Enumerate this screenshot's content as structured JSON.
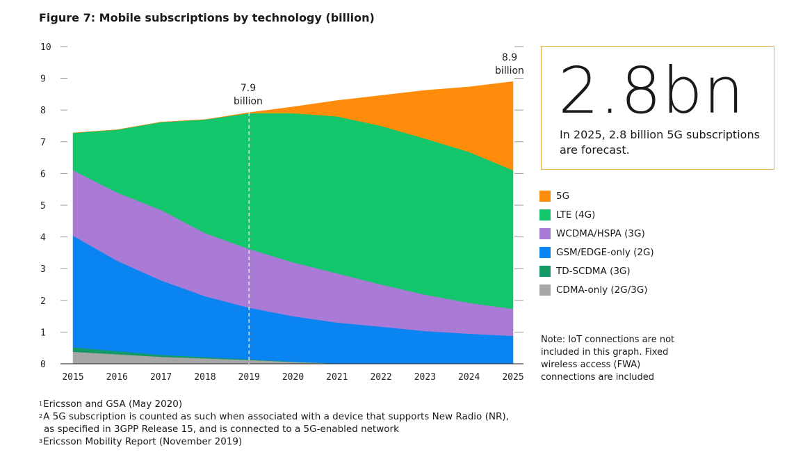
{
  "title": "Figure 7: Mobile subscriptions by technology (billion)",
  "callouts": {
    "y2019": {
      "value": "7.9",
      "unit": "billion"
    },
    "y2025": {
      "value": "8.9",
      "unit": "billion"
    }
  },
  "highlight": {
    "big": "2.8bn",
    "desc": "In 2025, 2.8 billion 5G subscriptions are forecast."
  },
  "legend": [
    {
      "label": "5G",
      "color": "#ff8c0a"
    },
    {
      "label": "LTE (4G)",
      "color": "#13c56b"
    },
    {
      "label": "WCDMA/HSPA (3G)",
      "color": "#a97bd6"
    },
    {
      "label": "GSM/EDGE-only (2G)",
      "color": "#0a84f0"
    },
    {
      "label": "TD-SCDMA (3G)",
      "color": "#139966"
    },
    {
      "label": "CDMA-only (2G/3G)",
      "color": "#a6a6a6"
    }
  ],
  "note": "Note: IoT connections are not included in this graph. Fixed wireless access (FWA) connections are included",
  "footnotes": [
    {
      "num": "1",
      "text": "Ericsson and GSA (May 2020)"
    },
    {
      "num": "2",
      "text": "A 5G subscription is counted as such when associated with a device that supports New Radio (NR),"
    },
    {
      "num": "",
      "text": "as specified in 3GPP Release 15, and is connected to a 5G-enabled network"
    },
    {
      "num": "3",
      "text": "Ericsson Mobility Report (November 2019)"
    }
  ],
  "chart_data": {
    "type": "area",
    "stacked": true,
    "title": "Figure 7: Mobile subscriptions by technology (billion)",
    "xlabel": "",
    "ylabel": "",
    "x": [
      2015,
      2016,
      2017,
      2018,
      2019,
      2020,
      2021,
      2022,
      2023,
      2024,
      2025
    ],
    "ylim": [
      0,
      10
    ],
    "yticks": [
      0,
      1,
      2,
      3,
      4,
      5,
      6,
      7,
      8,
      9,
      10
    ],
    "grid": false,
    "reference_line": {
      "x": 2019,
      "style": "dashed"
    },
    "series": [
      {
        "name": "CDMA-only (2G/3G)",
        "color": "#a6a6a6",
        "values": [
          0.38,
          0.3,
          0.22,
          0.17,
          0.12,
          0.06,
          0.01,
          0,
          0,
          0,
          0
        ]
      },
      {
        "name": "TD-SCDMA (3G)",
        "color": "#139966",
        "values": [
          0.14,
          0.1,
          0.06,
          0.04,
          0.02,
          0.01,
          0,
          0,
          0,
          0,
          0
        ]
      },
      {
        "name": "GSM/EDGE-only (2G)",
        "color": "#0a84f0",
        "values": [
          3.52,
          2.85,
          2.35,
          1.92,
          1.63,
          1.43,
          1.29,
          1.17,
          1.03,
          0.95,
          0.88
        ]
      },
      {
        "name": "WCDMA/HSPA (3G)",
        "color": "#a97bd6",
        "values": [
          2.06,
          2.15,
          2.22,
          1.99,
          1.85,
          1.7,
          1.55,
          1.33,
          1.15,
          0.97,
          0.85
        ]
      },
      {
        "name": "LTE (4G)",
        "color": "#13c56b",
        "values": [
          1.18,
          1.98,
          2.77,
          3.58,
          4.28,
          4.7,
          4.95,
          5.0,
          4.92,
          4.76,
          4.37
        ]
      },
      {
        "name": "5G",
        "color": "#ff8c0a",
        "values": [
          0,
          0,
          0,
          0,
          0.02,
          0.2,
          0.5,
          0.96,
          1.52,
          2.05,
          2.8
        ]
      }
    ]
  }
}
